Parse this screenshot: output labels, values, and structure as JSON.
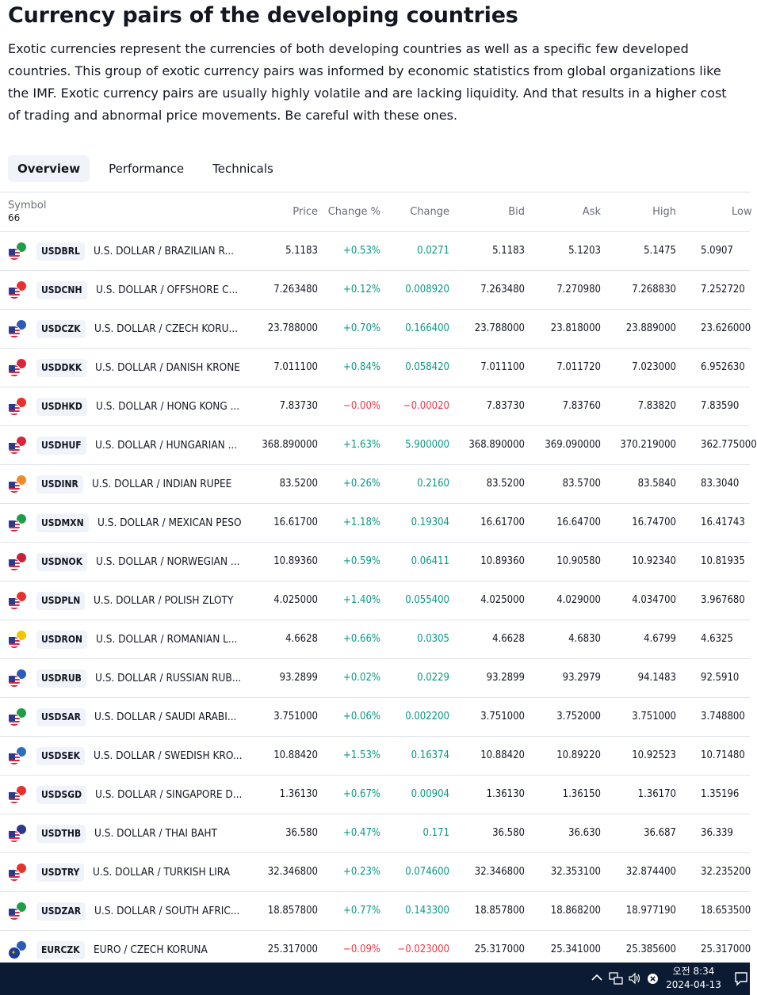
{
  "page": {
    "title": "Currency pairs of the developing countries",
    "description": "Exotic currencies represent the currencies of both developing countries as well as a specific few developed countries. This group of exotic currency pairs was informed by economic statistics from global organizations like the IMF. Exotic currency pairs are usually highly volatile and are lacking liquidity. And that results in a higher cost of trading and abnormal price movements. Be careful with these ones."
  },
  "tabs": [
    {
      "label": "Overview",
      "active": true
    },
    {
      "label": "Performance",
      "active": false
    },
    {
      "label": "Technicals",
      "active": false
    }
  ],
  "table": {
    "headers": {
      "symbol": "Symbol",
      "count": "66",
      "price": "Price",
      "change_pct": "Change %",
      "change": "Change",
      "bid": "Bid",
      "ask": "Ask",
      "high": "High",
      "low": "Low"
    },
    "rows": [
      {
        "ticker": "USDBRL",
        "desc": "U.S. DOLLAR / BRAZILIAN R...",
        "price": "5.1183",
        "change_pct": "+0.53%",
        "change": "0.0271",
        "bid": "5.1183",
        "ask": "5.1203",
        "high": "5.1475",
        "low": "5.0907",
        "dir": "up",
        "flag_color": "#1f9e4a"
      },
      {
        "ticker": "USDCNH",
        "desc": "U.S. DOLLAR / OFFSHORE C...",
        "price": "7.263480",
        "change_pct": "+0.12%",
        "change": "0.008920",
        "bid": "7.263480",
        "ask": "7.270980",
        "high": "7.268830",
        "low": "7.252720",
        "dir": "up",
        "flag_color": "#e5322d"
      },
      {
        "ticker": "USDCZK",
        "desc": "U.S. DOLLAR / CZECH KORU...",
        "price": "23.788000",
        "change_pct": "+0.70%",
        "change": "0.166400",
        "bid": "23.788000",
        "ask": "23.818000",
        "high": "23.889000",
        "low": "23.626000",
        "dir": "up",
        "flag_color": "#2b5cb8"
      },
      {
        "ticker": "USDDKK",
        "desc": "U.S. DOLLAR / DANISH KRONE",
        "price": "7.011100",
        "change_pct": "+0.84%",
        "change": "0.058420",
        "bid": "7.011100",
        "ask": "7.011720",
        "high": "7.023000",
        "low": "6.952630",
        "dir": "up",
        "flag_color": "#d8263d"
      },
      {
        "ticker": "USDHKD",
        "desc": "U.S. DOLLAR / HONG KONG ...",
        "price": "7.83730",
        "change_pct": "−0.00%",
        "change": "−0.00020",
        "bid": "7.83730",
        "ask": "7.83760",
        "high": "7.83820",
        "low": "7.83590",
        "dir": "down",
        "flag_color": "#e5322d"
      },
      {
        "ticker": "USDHUF",
        "desc": "U.S. DOLLAR / HUNGARIAN ...",
        "price": "368.890000",
        "change_pct": "+1.63%",
        "change": "5.900000",
        "bid": "368.890000",
        "ask": "369.090000",
        "high": "370.219000",
        "low": "362.775000",
        "dir": "up",
        "flag_color": "#d8263d"
      },
      {
        "ticker": "USDINR",
        "desc": "U.S. DOLLAR / INDIAN RUPEE",
        "price": "83.5200",
        "change_pct": "+0.26%",
        "change": "0.2160",
        "bid": "83.5200",
        "ask": "83.5700",
        "high": "83.5840",
        "low": "83.3040",
        "dir": "up",
        "flag_color": "#f08a24"
      },
      {
        "ticker": "USDMXN",
        "desc": "U.S. DOLLAR / MEXICAN PESO",
        "price": "16.61700",
        "change_pct": "+1.18%",
        "change": "0.19304",
        "bid": "16.61700",
        "ask": "16.64700",
        "high": "16.74700",
        "low": "16.41743",
        "dir": "up",
        "flag_color": "#1f9e4a"
      },
      {
        "ticker": "USDNOK",
        "desc": "U.S. DOLLAR / NORWEGIAN ...",
        "price": "10.89360",
        "change_pct": "+0.59%",
        "change": "0.06411",
        "bid": "10.89360",
        "ask": "10.90580",
        "high": "10.92340",
        "low": "10.81935",
        "dir": "up",
        "flag_color": "#c8213a"
      },
      {
        "ticker": "USDPLN",
        "desc": "U.S. DOLLAR / POLISH ZLOTY",
        "price": "4.025000",
        "change_pct": "+1.40%",
        "change": "0.055400",
        "bid": "4.025000",
        "ask": "4.029000",
        "high": "4.034700",
        "low": "3.967680",
        "dir": "up",
        "flag_color": "#e5322d"
      },
      {
        "ticker": "USDRON",
        "desc": "U.S. DOLLAR / ROMANIAN L...",
        "price": "4.6628",
        "change_pct": "+0.66%",
        "change": "0.0305",
        "bid": "4.6628",
        "ask": "4.6830",
        "high": "4.6799",
        "low": "4.6325",
        "dir": "up",
        "flag_color": "#f2c500"
      },
      {
        "ticker": "USDRUB",
        "desc": "U.S. DOLLAR / RUSSIAN RUB...",
        "price": "93.2899",
        "change_pct": "+0.02%",
        "change": "0.0229",
        "bid": "93.2899",
        "ask": "93.2979",
        "high": "94.1483",
        "low": "92.5910",
        "dir": "up",
        "flag_color": "#2b5cb8"
      },
      {
        "ticker": "USDSAR",
        "desc": "U.S. DOLLAR / SAUDI ARABI...",
        "price": "3.751000",
        "change_pct": "+0.06%",
        "change": "0.002200",
        "bid": "3.751000",
        "ask": "3.752000",
        "high": "3.751000",
        "low": "3.748800",
        "dir": "up",
        "flag_color": "#1f9e4a"
      },
      {
        "ticker": "USDSEK",
        "desc": "U.S. DOLLAR / SWEDISH KRO...",
        "price": "10.88420",
        "change_pct": "+1.53%",
        "change": "0.16374",
        "bid": "10.88420",
        "ask": "10.89220",
        "high": "10.92523",
        "low": "10.71480",
        "dir": "up",
        "flag_color": "#2a6fc0"
      },
      {
        "ticker": "USDSGD",
        "desc": "U.S. DOLLAR / SINGAPORE D...",
        "price": "1.36130",
        "change_pct": "+0.67%",
        "change": "0.00904",
        "bid": "1.36130",
        "ask": "1.36150",
        "high": "1.36170",
        "low": "1.35196",
        "dir": "up",
        "flag_color": "#e5322d"
      },
      {
        "ticker": "USDTHB",
        "desc": "U.S. DOLLAR / THAI BAHT",
        "price": "36.580",
        "change_pct": "+0.47%",
        "change": "0.171",
        "bid": "36.580",
        "ask": "36.630",
        "high": "36.687",
        "low": "36.339",
        "dir": "up",
        "flag_color": "#2b3a8c"
      },
      {
        "ticker": "USDTRY",
        "desc": "U.S. DOLLAR / TURKISH LIRA",
        "price": "32.346800",
        "change_pct": "+0.23%",
        "change": "0.074600",
        "bid": "32.346800",
        "ask": "32.353100",
        "high": "32.874400",
        "low": "32.235200",
        "dir": "up",
        "flag_color": "#e5322d"
      },
      {
        "ticker": "USDZAR",
        "desc": "U.S. DOLLAR / SOUTH AFRIC...",
        "price": "18.857800",
        "change_pct": "+0.77%",
        "change": "0.143300",
        "bid": "18.857800",
        "ask": "18.868200",
        "high": "18.977190",
        "low": "18.653500",
        "dir": "up",
        "flag_color": "#1f9e4a"
      },
      {
        "ticker": "EURCZK",
        "desc": "EURO / CZECH KORUNA",
        "price": "25.317000",
        "change_pct": "−0.09%",
        "change": "−0.023000",
        "bid": "25.317000",
        "ask": "25.341000",
        "high": "25.385600",
        "low": "25.317000",
        "dir": "down",
        "flag_color": "#2b5cb8",
        "base": "eu"
      }
    ]
  },
  "taskbar": {
    "time": "오전 8:34",
    "date": "2024-04-13",
    "icons": [
      "chevron-up-icon",
      "network-icon",
      "volume-icon",
      "close-circle-icon",
      "notification-icon"
    ]
  }
}
